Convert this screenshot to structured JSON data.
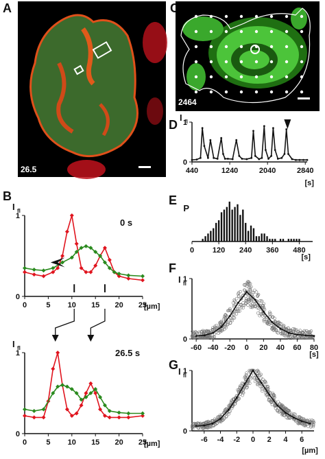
{
  "panels": {
    "A": {
      "letter": "A",
      "timestamp": "26.5"
    },
    "B": {
      "letter": "B",
      "top_time": "0 s",
      "bottom_time": "26.5 s",
      "ylabel": "I",
      "ylabel_sub": "fl",
      "xunit": "[µm]"
    },
    "C": {
      "letter": "C",
      "timestamp": "2464"
    },
    "D": {
      "letter": "D",
      "ylabel": "I",
      "ylabel_sub": "fl",
      "xunit": "[s]"
    },
    "E": {
      "letter": "E",
      "ylabel": "P",
      "xunit": "[s]"
    },
    "F": {
      "letter": "F",
      "ylabel": "I",
      "ylabel_sub": "fl",
      "xunit": "[s]"
    },
    "G": {
      "letter": "G",
      "ylabel": "I",
      "ylabel_sub": "fl",
      "xunit": "[µm]"
    }
  },
  "colors": {
    "red": "#e0141e",
    "green": "#2a8a1e",
    "cell_green": "#4cc43a",
    "black": "#111111"
  },
  "chart_data": [
    {
      "id": "B-top",
      "type": "line",
      "xlim": [
        0,
        25
      ],
      "ylim": [
        0,
        1
      ],
      "xticks": [
        "0",
        "5",
        "10",
        "15",
        "20",
        "25"
      ],
      "yticks": [
        "0",
        "1"
      ],
      "series": [
        {
          "color": "red",
          "x": [
            0,
            2,
            4,
            6,
            7,
            8,
            9,
            10,
            11,
            12,
            13,
            14,
            15,
            16,
            17,
            18,
            19,
            20,
            22,
            25
          ],
          "y": [
            0.3,
            0.27,
            0.25,
            0.3,
            0.35,
            0.5,
            0.8,
            1.0,
            0.65,
            0.35,
            0.3,
            0.3,
            0.38,
            0.5,
            0.6,
            0.45,
            0.3,
            0.25,
            0.22,
            0.2
          ]
        },
        {
          "color": "green",
          "x": [
            0,
            2,
            4,
            6,
            8,
            10,
            11,
            12,
            13,
            14,
            15,
            16,
            17,
            18,
            19,
            20,
            22,
            25
          ],
          "y": [
            0.35,
            0.33,
            0.32,
            0.35,
            0.42,
            0.48,
            0.55,
            0.6,
            0.62,
            0.6,
            0.55,
            0.5,
            0.42,
            0.35,
            0.3,
            0.28,
            0.26,
            0.25
          ]
        }
      ],
      "annotations": [
        "arrowhead at green shoulder",
        "tick marks at x=10.5 and x=17"
      ]
    },
    {
      "id": "B-bottom",
      "type": "line",
      "xlim": [
        0,
        25
      ],
      "ylim": [
        0,
        1
      ],
      "xticks": [
        "0",
        "5",
        "10",
        "15",
        "20",
        "25"
      ],
      "yticks": [
        "0",
        "1"
      ],
      "series": [
        {
          "color": "red",
          "x": [
            0,
            2,
            4,
            5,
            6,
            7,
            8,
            9,
            10,
            11,
            12,
            13,
            14,
            15,
            16,
            17,
            18,
            20,
            22,
            25
          ],
          "y": [
            0.22,
            0.2,
            0.2,
            0.4,
            0.8,
            1.0,
            0.6,
            0.3,
            0.22,
            0.25,
            0.35,
            0.5,
            0.62,
            0.5,
            0.3,
            0.22,
            0.2,
            0.2,
            0.2,
            0.22
          ]
        },
        {
          "color": "green",
          "x": [
            0,
            2,
            4,
            6,
            7,
            8,
            9,
            10,
            11,
            12,
            13,
            14,
            15,
            16,
            17,
            18,
            20,
            22,
            25
          ],
          "y": [
            0.3,
            0.28,
            0.3,
            0.5,
            0.58,
            0.6,
            0.58,
            0.55,
            0.5,
            0.42,
            0.45,
            0.5,
            0.55,
            0.45,
            0.35,
            0.28,
            0.26,
            0.25,
            0.25
          ]
        }
      ]
    },
    {
      "id": "D",
      "type": "line",
      "xlim": [
        440,
        2880
      ],
      "ylim": [
        0,
        1
      ],
      "xticks": [
        "440",
        "1240",
        "2040",
        "2840"
      ],
      "yticks": [
        "0",
        "1"
      ],
      "series": [
        {
          "color": "black",
          "x": [
            440,
            540,
            620,
            660,
            700,
            780,
            830,
            900,
            980,
            1060,
            1100,
            1140,
            1200,
            1300,
            1380,
            1440,
            1500,
            1600,
            1700,
            1740,
            1780,
            1860,
            1920,
            1970,
            2000,
            2060,
            2120,
            2160,
            2200,
            2260,
            2340,
            2400,
            2440,
            2480,
            2560,
            2640,
            2720,
            2800,
            2880
          ],
          "y": [
            0.05,
            0.06,
            0.1,
            0.85,
            0.4,
            0.1,
            0.55,
            0.1,
            0.08,
            0.6,
            0.2,
            0.08,
            0.08,
            0.07,
            0.55,
            0.15,
            0.08,
            0.07,
            0.1,
            0.78,
            0.15,
            0.07,
            0.1,
            0.9,
            0.3,
            0.08,
            0.15,
            0.85,
            0.3,
            0.08,
            0.1,
            0.2,
            0.82,
            0.2,
            0.07,
            0.05,
            0.05,
            0.05,
            0.05
          ]
        }
      ],
      "annotations": [
        "arrowhead at 2464"
      ]
    },
    {
      "id": "E",
      "type": "bar",
      "xlim": [
        0,
        540
      ],
      "xticks": [
        "0",
        "120",
        "240",
        "360",
        "480"
      ],
      "bin_width": 12,
      "x": [
        48,
        60,
        72,
        84,
        96,
        108,
        120,
        132,
        144,
        156,
        168,
        180,
        192,
        204,
        216,
        228,
        240,
        252,
        264,
        276,
        288,
        300,
        312,
        324,
        336,
        348,
        360,
        372,
        384,
        396,
        408,
        420,
        432,
        444,
        456,
        468,
        480
      ],
      "values": [
        1,
        2,
        3,
        4,
        5,
        7,
        8,
        11,
        12,
        13,
        15,
        12,
        13,
        14,
        10,
        12,
        7,
        4,
        6,
        5,
        2,
        2,
        3,
        3,
        2,
        1,
        1,
        1,
        0,
        1,
        1,
        0,
        1,
        1,
        1,
        1,
        1
      ]
    },
    {
      "id": "F",
      "type": "scatter",
      "xlim": [
        -65,
        80
      ],
      "ylim": [
        0,
        1
      ],
      "xticks": [
        "-60",
        "-40",
        "-20",
        "0",
        "20",
        "40",
        "60",
        "80"
      ],
      "yticks": [
        "0",
        "1"
      ],
      "mean_line": {
        "x": [
          -60,
          -50,
          -40,
          -30,
          -20,
          -10,
          0,
          10,
          20,
          30,
          40,
          50,
          60,
          70,
          80
        ],
        "y": [
          0.05,
          0.06,
          0.1,
          0.2,
          0.38,
          0.6,
          0.78,
          0.65,
          0.45,
          0.28,
          0.17,
          0.1,
          0.07,
          0.06,
          0.05
        ]
      }
    },
    {
      "id": "G",
      "type": "scatter",
      "xlim": [
        -7.5,
        7.5
      ],
      "ylim": [
        0,
        1
      ],
      "xticks": [
        "-6",
        "-4",
        "-2",
        "0",
        "2",
        "4",
        "6"
      ],
      "yticks": [
        "0",
        "1"
      ],
      "mean_line": {
        "x": [
          -7,
          -6,
          -5,
          -4,
          -3,
          -2,
          -1,
          0,
          1,
          2,
          3,
          4,
          5,
          6,
          7
        ],
        "y": [
          0.08,
          0.09,
          0.12,
          0.2,
          0.35,
          0.55,
          0.78,
          1.0,
          0.8,
          0.6,
          0.42,
          0.3,
          0.22,
          0.16,
          0.12
        ]
      }
    }
  ]
}
